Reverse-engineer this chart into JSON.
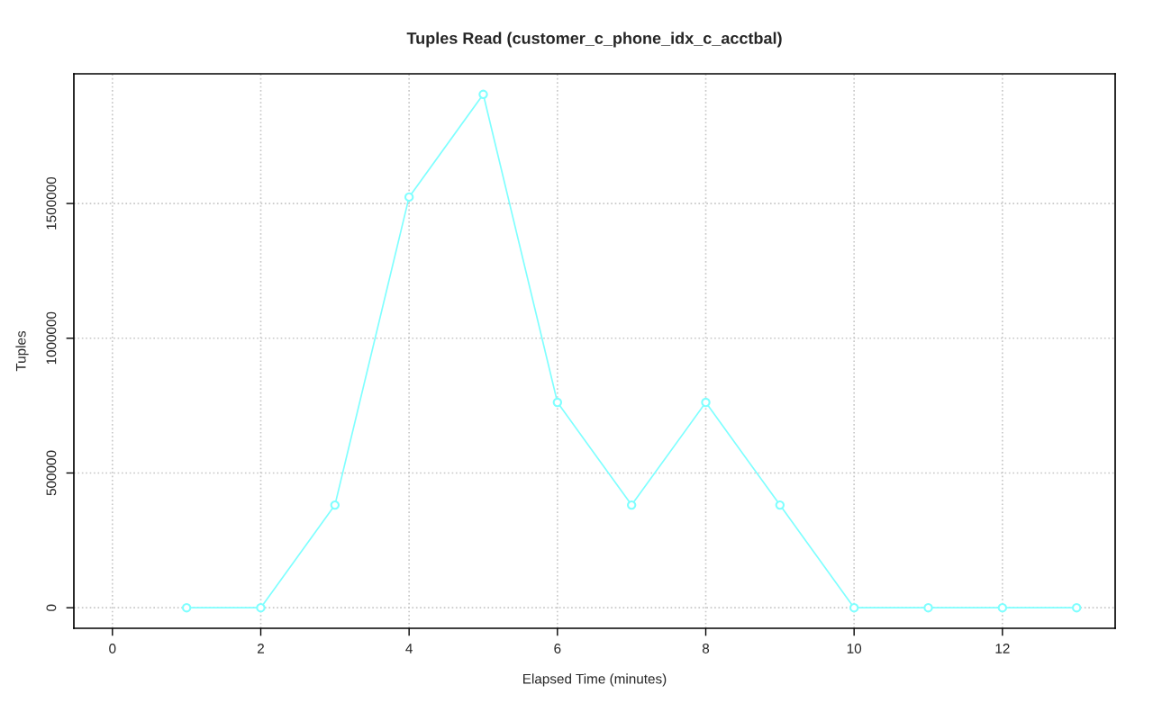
{
  "chart_data": {
    "type": "line",
    "title": "Tuples Read (customer_c_phone_idx_c_acctbal)",
    "xlabel": "Elapsed Time (minutes)",
    "ylabel": "Tuples",
    "x": [
      1,
      2,
      3,
      4,
      5,
      6,
      7,
      8,
      9,
      10,
      11,
      12,
      13
    ],
    "series": [
      {
        "color": "#7fffff",
        "values": [
          0,
          0,
          381000,
          1524000,
          1905000,
          762000,
          381000,
          762000,
          381000,
          0,
          0,
          0,
          0
        ]
      }
    ],
    "xlim": [
      -0.52,
      13.52
    ],
    "xticks": [
      0,
      2,
      4,
      6,
      8,
      10,
      12
    ],
    "ylim": [
      -76200,
      1981200
    ],
    "yticks": [
      0,
      500000,
      1000000,
      1500000
    ],
    "grid": true,
    "marker": "circle",
    "line_style": "solid",
    "legend": false
  }
}
